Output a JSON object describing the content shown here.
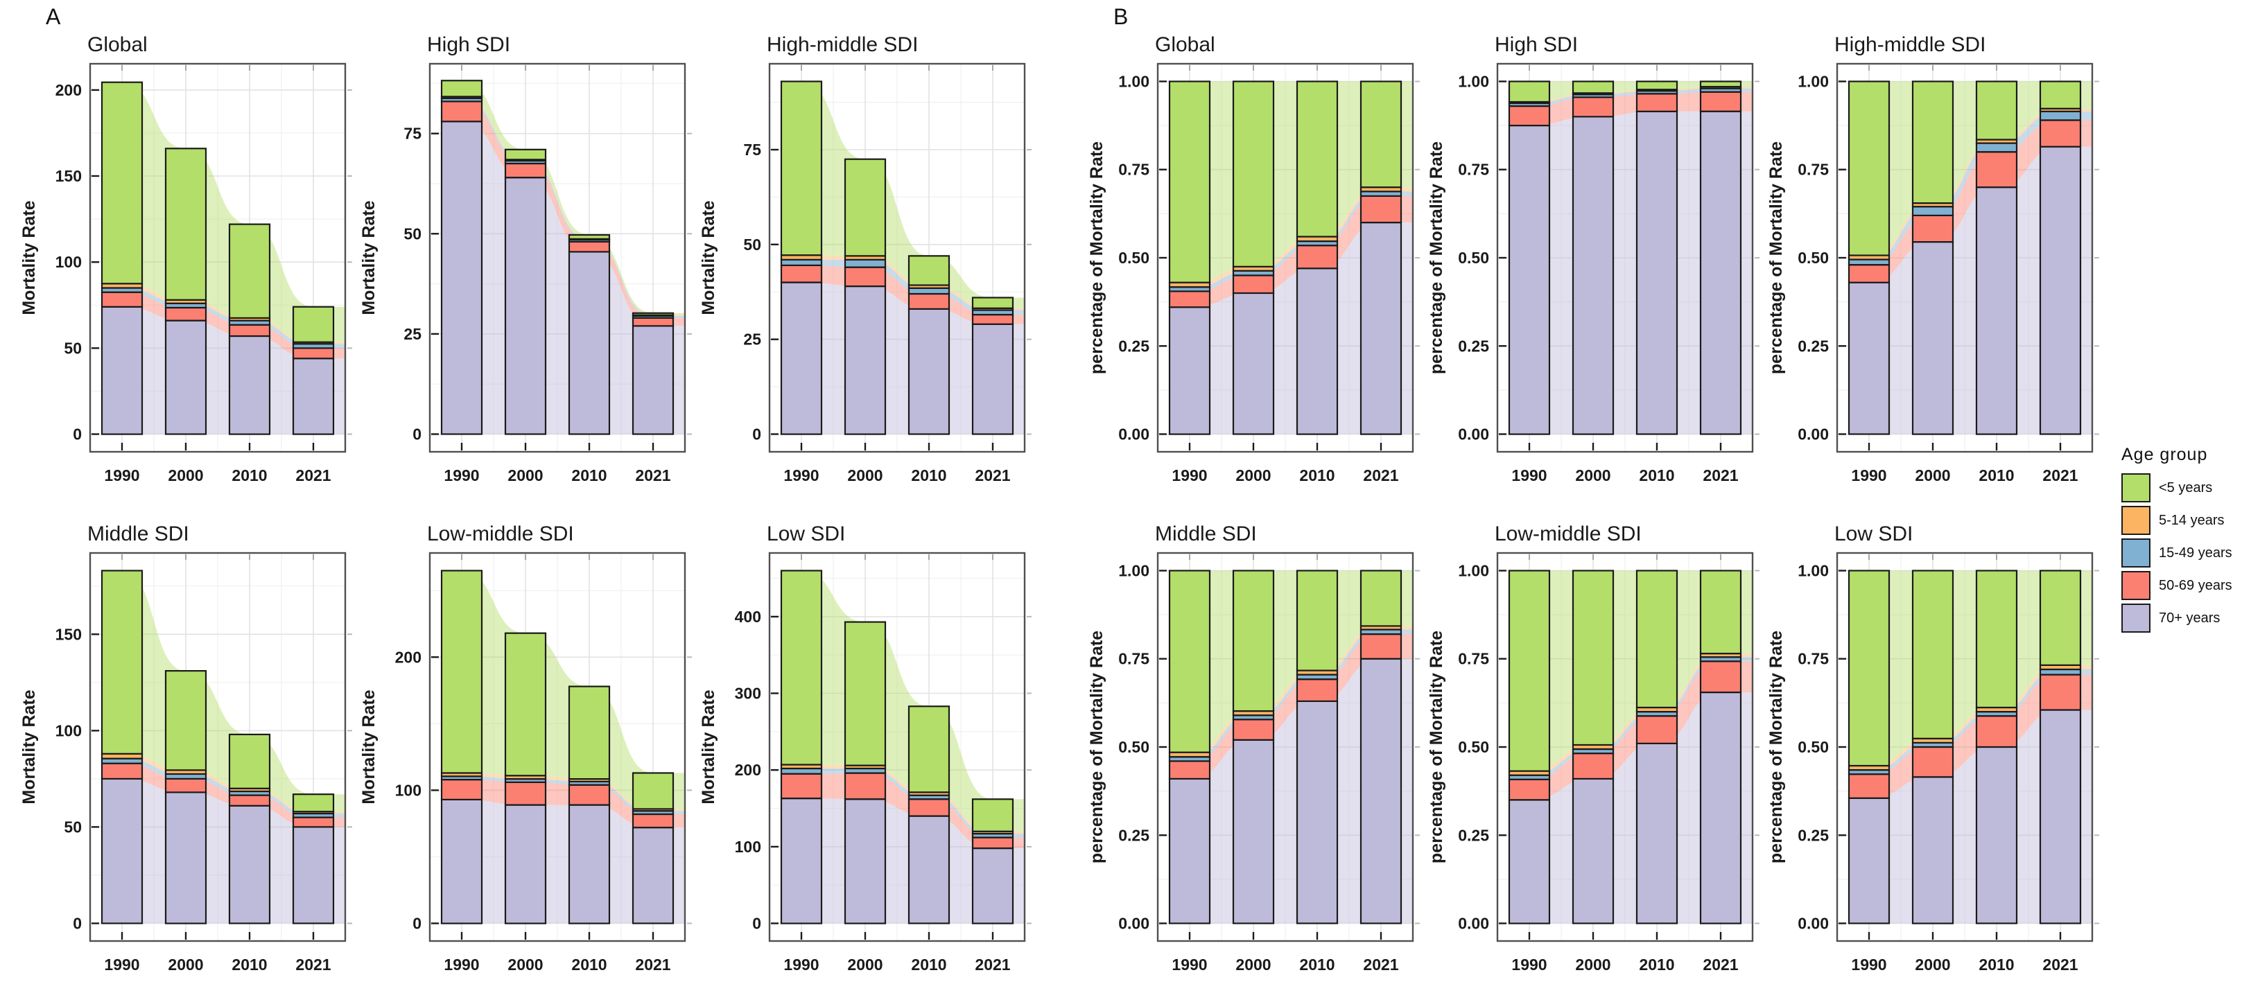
{
  "figure": {
    "panels": [
      {
        "label": "A"
      },
      {
        "label": "B"
      }
    ],
    "age_group_colors": {
      "<5 years": "#b3de69",
      "5-14 years": "#fdb462",
      "15-49 years": "#80b1d3",
      "50-69 years": "#fb8072",
      "70+ years": "#bebada"
    },
    "legend": {
      "title": "Age  group",
      "entries": [
        {
          "label": "<5 years",
          "color": "#b3de69"
        },
        {
          "label": "5-14 years",
          "color": "#fdb462"
        },
        {
          "label": "15-49 years",
          "color": "#80b1d3"
        },
        {
          "label": "50-69 years",
          "color": "#fb8072"
        },
        {
          "label": "70+ years",
          "color": "#bebada"
        }
      ]
    }
  },
  "chart_data": [
    {
      "panel": "A",
      "type": "bar",
      "stacked": true,
      "title": "Global",
      "ylabel": "Mortality Rate",
      "xlabel": "",
      "categories": [
        "1990",
        "2000",
        "2010",
        "2021"
      ],
      "yticks": [
        0,
        50,
        100,
        150,
        200
      ],
      "ytick_labels": [
        "0",
        "50",
        "100",
        "150",
        "200"
      ],
      "ylim_max": 205,
      "grid": true,
      "series": [
        {
          "name": "70+ years",
          "values": [
            74,
            66,
            57,
            44
          ]
        },
        {
          "name": "50-69 years",
          "values": [
            8.5,
            7.5,
            6.5,
            6
          ]
        },
        {
          "name": "15-49 years",
          "values": [
            2.5,
            2.5,
            2.5,
            2.5
          ]
        },
        {
          "name": "5-14 years",
          "values": [
            2.5,
            2,
            1.5,
            1
          ]
        },
        {
          "name": "<5 years",
          "values": [
            117,
            88,
            54.5,
            20.5
          ]
        }
      ]
    },
    {
      "panel": "A",
      "type": "bar",
      "stacked": true,
      "title": "High SDI",
      "ylabel": "Mortality Rate",
      "xlabel": "",
      "categories": [
        "1990",
        "2000",
        "2010",
        "2021"
      ],
      "yticks": [
        0,
        25,
        50,
        75
      ],
      "ytick_labels": [
        "0",
        "25",
        "50",
        "75"
      ],
      "ylim_max": 88,
      "grid": true,
      "series": [
        {
          "name": "70+ years",
          "values": [
            78,
            64,
            45.5,
            27
          ]
        },
        {
          "name": "50-69 years",
          "values": [
            5,
            3.5,
            2.5,
            2
          ]
        },
        {
          "name": "15-49 years",
          "values": [
            0.8,
            0.7,
            0.5,
            0.5
          ]
        },
        {
          "name": "5-14 years",
          "values": [
            0.4,
            0.3,
            0.2,
            0.2
          ]
        },
        {
          "name": "<5 years",
          "values": [
            4,
            2.5,
            1,
            0.5
          ]
        }
      ]
    },
    {
      "panel": "A",
      "type": "bar",
      "stacked": true,
      "title": "High-middle SDI",
      "ylabel": "Mortality Rate",
      "xlabel": "",
      "categories": [
        "1990",
        "2000",
        "2010",
        "2021"
      ],
      "yticks": [
        0,
        25,
        50,
        75
      ],
      "ytick_labels": [
        "0",
        "25",
        "50",
        "75"
      ],
      "ylim_max": 93,
      "grid": true,
      "series": [
        {
          "name": "70+ years",
          "values": [
            40,
            39,
            33,
            29
          ]
        },
        {
          "name": "50-69 years",
          "values": [
            4.5,
            5,
            4,
            2.5
          ]
        },
        {
          "name": "15-49 years",
          "values": [
            1.5,
            2,
            1.5,
            1.2
          ]
        },
        {
          "name": "5-14 years",
          "values": [
            1.2,
            1,
            0.8,
            0.5
          ]
        },
        {
          "name": "<5 years",
          "values": [
            45.8,
            25.5,
            7.7,
            2.8
          ]
        }
      ]
    },
    {
      "panel": "A",
      "type": "bar",
      "stacked": true,
      "title": "Middle SDI",
      "ylabel": "Mortality Rate",
      "xlabel": "",
      "categories": [
        "1990",
        "2000",
        "2010",
        "2021"
      ],
      "yticks": [
        0,
        50,
        100,
        150
      ],
      "ytick_labels": [
        "0",
        "50",
        "100",
        "150"
      ],
      "ylim_max": 183,
      "grid": true,
      "series": [
        {
          "name": "70+ years",
          "values": [
            75,
            68,
            61,
            50
          ]
        },
        {
          "name": "50-69 years",
          "values": [
            8,
            7,
            5.5,
            5
          ]
        },
        {
          "name": "15-49 years",
          "values": [
            2.5,
            2.5,
            2,
            2
          ]
        },
        {
          "name": "5-14 years",
          "values": [
            2.5,
            2,
            1.5,
            1
          ]
        },
        {
          "name": "<5 years",
          "values": [
            95,
            51.5,
            28,
            9
          ]
        }
      ]
    },
    {
      "panel": "A",
      "type": "bar",
      "stacked": true,
      "title": "Low-middle SDI",
      "ylabel": "Mortality Rate",
      "xlabel": "",
      "categories": [
        "1990",
        "2000",
        "2010",
        "2021"
      ],
      "yticks": [
        0,
        100,
        200
      ],
      "ytick_labels": [
        "0",
        "100",
        "200"
      ],
      "ylim_max": 265,
      "grid": true,
      "series": [
        {
          "name": "70+ years",
          "values": [
            93,
            89,
            89,
            72
          ]
        },
        {
          "name": "50-69 years",
          "values": [
            15,
            17,
            15,
            10
          ]
        },
        {
          "name": "15-49 years",
          "values": [
            2.5,
            2.5,
            2.5,
            2.5
          ]
        },
        {
          "name": "5-14 years",
          "values": [
            2.5,
            2.5,
            2,
            1.5
          ]
        },
        {
          "name": "<5 years",
          "values": [
            152,
            107,
            69.5,
            27
          ]
        }
      ]
    },
    {
      "panel": "A",
      "type": "bar",
      "stacked": true,
      "title": "Low SDI",
      "ylabel": "Mortality Rate",
      "xlabel": "",
      "categories": [
        "1990",
        "2000",
        "2010",
        "2021"
      ],
      "yticks": [
        0,
        100,
        200,
        300,
        400
      ],
      "ytick_labels": [
        "0",
        "100",
        "200",
        "300",
        "400"
      ],
      "ylim_max": 460,
      "grid": true,
      "series": [
        {
          "name": "70+ years",
          "values": [
            163,
            162,
            140,
            98
          ]
        },
        {
          "name": "50-69 years",
          "values": [
            32,
            34,
            22,
            14
          ]
        },
        {
          "name": "15-49 years",
          "values": [
            7,
            6,
            5,
            5
          ]
        },
        {
          "name": "5-14 years",
          "values": [
            5,
            4,
            4,
            3
          ]
        },
        {
          "name": "<5 years",
          "values": [
            253,
            187,
            112,
            42
          ]
        }
      ]
    },
    {
      "panel": "B",
      "type": "bar",
      "stacked": true,
      "title": "Global",
      "ylabel": "percentage of Mortality Rate",
      "xlabel": "",
      "categories": [
        "1990",
        "2000",
        "2010",
        "2021"
      ],
      "yticks": [
        0,
        0.25,
        0.5,
        0.75,
        1
      ],
      "ytick_labels": [
        "0.00",
        "0.25",
        "0.50",
        "0.75",
        "1.00"
      ],
      "ylim_max": 1,
      "grid": true,
      "series": [
        {
          "name": "70+ years",
          "values": [
            0.36,
            0.4,
            0.47,
            0.6
          ]
        },
        {
          "name": "50-69 years",
          "values": [
            0.045,
            0.05,
            0.065,
            0.075
          ]
        },
        {
          "name": "15-49 years",
          "values": [
            0.012,
            0.013,
            0.012,
            0.013
          ]
        },
        {
          "name": "5-14 years",
          "values": [
            0.013,
            0.012,
            0.013,
            0.012
          ]
        },
        {
          "name": "<5 years",
          "values": [
            0.57,
            0.525,
            0.44,
            0.3
          ]
        }
      ]
    },
    {
      "panel": "B",
      "type": "bar",
      "stacked": true,
      "title": "High SDI",
      "ylabel": "percentage of Mortality Rate",
      "xlabel": "",
      "categories": [
        "1990",
        "2000",
        "2010",
        "2021"
      ],
      "yticks": [
        0,
        0.25,
        0.5,
        0.75,
        1
      ],
      "ytick_labels": [
        "0.00",
        "0.25",
        "0.50",
        "0.75",
        "1.00"
      ],
      "ylim_max": 1,
      "grid": true,
      "series": [
        {
          "name": "70+ years",
          "values": [
            0.875,
            0.9,
            0.915,
            0.915
          ]
        },
        {
          "name": "50-69 years",
          "values": [
            0.055,
            0.055,
            0.05,
            0.055
          ]
        },
        {
          "name": "15-49 years",
          "values": [
            0.008,
            0.008,
            0.008,
            0.01
          ]
        },
        {
          "name": "5-14 years",
          "values": [
            0.004,
            0.004,
            0.004,
            0.005
          ]
        },
        {
          "name": "<5 years",
          "values": [
            0.058,
            0.033,
            0.023,
            0.015
          ]
        }
      ]
    },
    {
      "panel": "B",
      "type": "bar",
      "stacked": true,
      "title": "High-middle SDI",
      "ylabel": "percentage of Mortality Rate",
      "xlabel": "",
      "categories": [
        "1990",
        "2000",
        "2010",
        "2021"
      ],
      "yticks": [
        0,
        0.25,
        0.5,
        0.75,
        1
      ],
      "ytick_labels": [
        "0.00",
        "0.25",
        "0.50",
        "0.75",
        "1.00"
      ],
      "ylim_max": 1,
      "grid": true,
      "series": [
        {
          "name": "70+ years",
          "values": [
            0.43,
            0.545,
            0.7,
            0.815
          ]
        },
        {
          "name": "50-69 years",
          "values": [
            0.05,
            0.075,
            0.1,
            0.075
          ]
        },
        {
          "name": "15-49 years",
          "values": [
            0.015,
            0.025,
            0.025,
            0.025
          ]
        },
        {
          "name": "5-14 years",
          "values": [
            0.012,
            0.01,
            0.01,
            0.008
          ]
        },
        {
          "name": "<5 years",
          "values": [
            0.493,
            0.345,
            0.165,
            0.077
          ]
        }
      ]
    },
    {
      "panel": "B",
      "type": "bar",
      "stacked": true,
      "title": "Middle SDI",
      "ylabel": "percentage of Mortality Rate",
      "xlabel": "",
      "categories": [
        "1990",
        "2000",
        "2010",
        "2021"
      ],
      "yticks": [
        0,
        0.25,
        0.5,
        0.75,
        1
      ],
      "ytick_labels": [
        "0.00",
        "0.25",
        "0.50",
        "0.75",
        "1.00"
      ],
      "ylim_max": 1,
      "grid": true,
      "series": [
        {
          "name": "70+ years",
          "values": [
            0.41,
            0.52,
            0.63,
            0.75
          ]
        },
        {
          "name": "50-69 years",
          "values": [
            0.05,
            0.058,
            0.062,
            0.07
          ]
        },
        {
          "name": "15-49 years",
          "values": [
            0.012,
            0.012,
            0.013,
            0.013
          ]
        },
        {
          "name": "5-14 years",
          "values": [
            0.013,
            0.012,
            0.012,
            0.01
          ]
        },
        {
          "name": "<5 years",
          "values": [
            0.515,
            0.398,
            0.283,
            0.157
          ]
        }
      ]
    },
    {
      "panel": "B",
      "type": "bar",
      "stacked": true,
      "title": "Low-middle SDI",
      "ylabel": "percentage of Mortality Rate",
      "xlabel": "",
      "categories": [
        "1990",
        "2000",
        "2010",
        "2021"
      ],
      "yticks": [
        0,
        0.25,
        0.5,
        0.75,
        1
      ],
      "ytick_labels": [
        "0.00",
        "0.25",
        "0.50",
        "0.75",
        "1.00"
      ],
      "ylim_max": 1,
      "grid": true,
      "series": [
        {
          "name": "70+ years",
          "values": [
            0.35,
            0.41,
            0.51,
            0.655
          ]
        },
        {
          "name": "50-69 years",
          "values": [
            0.058,
            0.072,
            0.078,
            0.088
          ]
        },
        {
          "name": "15-49 years",
          "values": [
            0.012,
            0.012,
            0.012,
            0.012
          ]
        },
        {
          "name": "5-14 years",
          "values": [
            0.012,
            0.012,
            0.012,
            0.01
          ]
        },
        {
          "name": "<5 years",
          "values": [
            0.568,
            0.494,
            0.388,
            0.235
          ]
        }
      ]
    },
    {
      "panel": "B",
      "type": "bar",
      "stacked": true,
      "title": "Low SDI",
      "ylabel": "percentage of Mortality Rate",
      "xlabel": "",
      "categories": [
        "1990",
        "2000",
        "2010",
        "2021"
      ],
      "yticks": [
        0,
        0.25,
        0.5,
        0.75,
        1
      ],
      "ytick_labels": [
        "0.00",
        "0.25",
        "0.50",
        "0.75",
        "1.00"
      ],
      "ylim_max": 1,
      "grid": true,
      "series": [
        {
          "name": "70+ years",
          "values": [
            0.355,
            0.415,
            0.5,
            0.605
          ]
        },
        {
          "name": "50-69 years",
          "values": [
            0.068,
            0.085,
            0.088,
            0.1
          ]
        },
        {
          "name": "15-49 years",
          "values": [
            0.012,
            0.012,
            0.012,
            0.015
          ]
        },
        {
          "name": "5-14 years",
          "values": [
            0.012,
            0.012,
            0.012,
            0.012
          ]
        },
        {
          "name": "<5 years",
          "values": [
            0.553,
            0.476,
            0.388,
            0.268
          ]
        }
      ]
    }
  ]
}
